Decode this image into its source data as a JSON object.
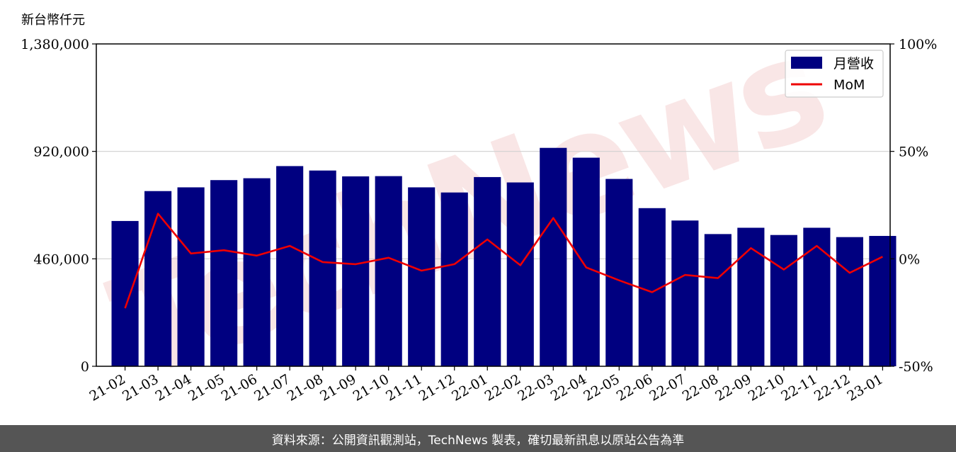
{
  "chart_data": {
    "type": "bar",
    "unit_label": "新台幣仟元",
    "categories": [
      "21-02",
      "21-03",
      "21-04",
      "21-05",
      "21-06",
      "21-07",
      "21-08",
      "21-09",
      "21-10",
      "21-11",
      "21-12",
      "22-01",
      "22-02",
      "22-03",
      "22-04",
      "22-05",
      "22-06",
      "22-07",
      "22-08",
      "22-09",
      "22-10",
      "22-11",
      "22-12",
      "23-01"
    ],
    "series": [
      {
        "name": "月營收",
        "type": "bar",
        "axis": "left",
        "color": "#000080",
        "values": [
          622000,
          750000,
          766000,
          797000,
          805000,
          857000,
          838000,
          813000,
          814000,
          766000,
          744000,
          810000,
          787000,
          935000,
          893000,
          802000,
          677000,
          624000,
          566000,
          593000,
          562000,
          593000,
          553000,
          558000
        ]
      },
      {
        "name": "MoM",
        "type": "line",
        "axis": "right",
        "color": "#ee0000",
        "values": [
          -23,
          21,
          2.5,
          4,
          1.5,
          6,
          -1.5,
          -2.5,
          0.5,
          -5.5,
          -2.5,
          9,
          -3,
          19,
          -4,
          -10,
          -15.5,
          -7.5,
          -9,
          5,
          -5,
          6,
          -6.5,
          1
        ]
      }
    ],
    "y_left": {
      "ylim": [
        0,
        1380000
      ],
      "ticks": [
        "0",
        "460,000",
        "920,000",
        "1,380,000"
      ]
    },
    "y_right": {
      "ylim": [
        -50,
        100
      ],
      "ticks": [
        "-50%",
        "0%",
        "50%",
        "100%"
      ]
    },
    "grid": "horizontal",
    "legend": "top-right",
    "watermark": "TechNews"
  },
  "footer": {
    "source_text": "資料來源：公開資訊觀測站，TechNews 製表，確切最新訊息以原站公告為準"
  }
}
